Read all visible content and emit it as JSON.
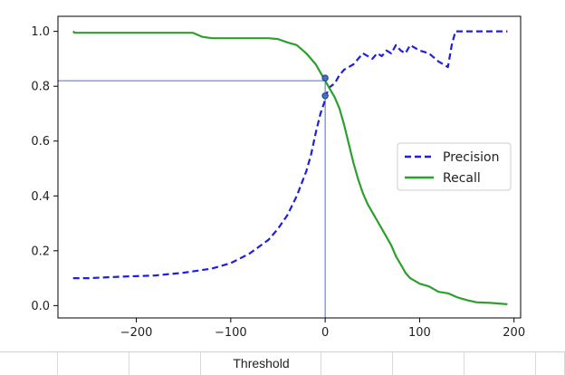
{
  "chart_data": {
    "type": "line",
    "xlabel": "Threshold",
    "ylabel": "",
    "xlim": [
      -283,
      207
    ],
    "ylim": [
      -0.045,
      1.055
    ],
    "x_ticks": [
      -200,
      -100,
      0,
      100,
      200
    ],
    "y_ticks": [
      0.0,
      0.2,
      0.4,
      0.6,
      0.8,
      1.0
    ],
    "x_tick_labels": [
      "−200",
      "−100",
      "0",
      "100",
      "200"
    ],
    "y_tick_labels": [
      "0.0",
      "0.2",
      "0.4",
      "0.6",
      "0.8",
      "1.0"
    ],
    "grid": false,
    "legend_position": "center-right",
    "series": [
      {
        "name": "Precision",
        "color": "#1f1fdf",
        "style": "dashed",
        "points": [
          [
            -267,
            0.1
          ],
          [
            -250,
            0.1
          ],
          [
            -220,
            0.105
          ],
          [
            -180,
            0.11
          ],
          [
            -150,
            0.12
          ],
          [
            -120,
            0.135
          ],
          [
            -100,
            0.155
          ],
          [
            -80,
            0.19
          ],
          [
            -60,
            0.24
          ],
          [
            -50,
            0.28
          ],
          [
            -40,
            0.33
          ],
          [
            -30,
            0.4
          ],
          [
            -20,
            0.49
          ],
          [
            -15,
            0.55
          ],
          [
            -10,
            0.63
          ],
          [
            -5,
            0.7
          ],
          [
            0,
            0.75
          ],
          [
            3,
            0.79
          ],
          [
            6,
            0.8
          ],
          [
            10,
            0.81
          ],
          [
            15,
            0.84
          ],
          [
            20,
            0.86
          ],
          [
            25,
            0.87
          ],
          [
            30,
            0.88
          ],
          [
            35,
            0.9
          ],
          [
            40,
            0.92
          ],
          [
            45,
            0.91
          ],
          [
            50,
            0.9
          ],
          [
            55,
            0.92
          ],
          [
            60,
            0.91
          ],
          [
            65,
            0.93
          ],
          [
            70,
            0.92
          ],
          [
            75,
            0.95
          ],
          [
            80,
            0.93
          ],
          [
            85,
            0.92
          ],
          [
            90,
            0.95
          ],
          [
            100,
            0.93
          ],
          [
            110,
            0.92
          ],
          [
            120,
            0.89
          ],
          [
            130,
            0.87
          ],
          [
            134,
            0.95
          ],
          [
            138,
            1.0
          ],
          [
            160,
            1.0
          ],
          [
            193,
            1.0
          ]
        ]
      },
      {
        "name": "Recall",
        "color": "#2ca02c",
        "style": "solid",
        "points": [
          [
            -267,
            1.0
          ],
          [
            -265,
            0.995
          ],
          [
            -200,
            0.995
          ],
          [
            -140,
            0.995
          ],
          [
            -130,
            0.98
          ],
          [
            -120,
            0.975
          ],
          [
            -110,
            0.975
          ],
          [
            -100,
            0.975
          ],
          [
            -80,
            0.975
          ],
          [
            -60,
            0.975
          ],
          [
            -50,
            0.972
          ],
          [
            -40,
            0.96
          ],
          [
            -30,
            0.95
          ],
          [
            -20,
            0.92
          ],
          [
            -10,
            0.88
          ],
          [
            -5,
            0.85
          ],
          [
            0,
            0.82
          ],
          [
            5,
            0.79
          ],
          [
            10,
            0.76
          ],
          [
            15,
            0.72
          ],
          [
            20,
            0.66
          ],
          [
            25,
            0.59
          ],
          [
            30,
            0.52
          ],
          [
            35,
            0.46
          ],
          [
            40,
            0.41
          ],
          [
            45,
            0.37
          ],
          [
            50,
            0.34
          ],
          [
            55,
            0.31
          ],
          [
            60,
            0.28
          ],
          [
            65,
            0.25
          ],
          [
            70,
            0.22
          ],
          [
            75,
            0.18
          ],
          [
            80,
            0.15
          ],
          [
            85,
            0.12
          ],
          [
            90,
            0.1
          ],
          [
            95,
            0.09
          ],
          [
            100,
            0.08
          ],
          [
            110,
            0.07
          ],
          [
            120,
            0.05
          ],
          [
            130,
            0.045
          ],
          [
            140,
            0.03
          ],
          [
            150,
            0.02
          ],
          [
            160,
            0.012
          ],
          [
            175,
            0.01
          ],
          [
            193,
            0.005
          ]
        ]
      }
    ],
    "annotations": {
      "threshold_x": 0,
      "recall_at_threshold": 0.82,
      "markers": [
        [
          0,
          0.83
        ],
        [
          0,
          0.765
        ]
      ],
      "line_color": "#4472c4"
    }
  }
}
